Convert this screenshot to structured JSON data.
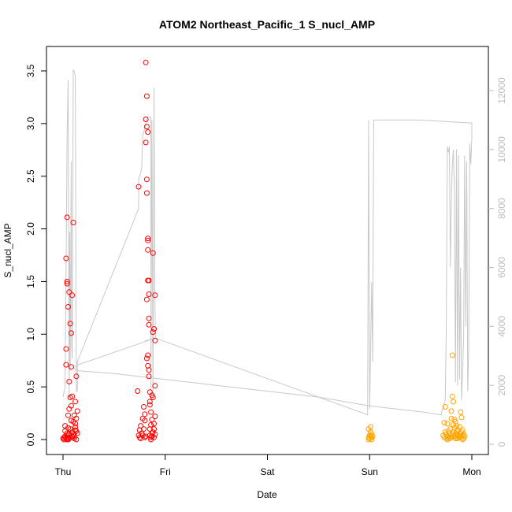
{
  "chart_data": {
    "type": "scatter",
    "title": "ATOM2 Northeast_Pacific_1 S_nucl_AMP",
    "xlabel": "Date",
    "ylabel": "S_nucl_AMP",
    "x_ticks": [
      "Thu",
      "Fri",
      "Sat",
      "Sun",
      "Mon"
    ],
    "y_ticks": [
      "0.0",
      "0.5",
      "1.0",
      "1.5",
      "2.0",
      "2.5",
      "3.0",
      "3.5"
    ],
    "ylim": [
      0,
      3.6
    ],
    "right_axis": {
      "ticks": [
        "0",
        "2000",
        "4000",
        "6000",
        "8000",
        "10000",
        "12000"
      ],
      "ylim": [
        0,
        12800
      ],
      "color": "#bdbdbd"
    },
    "xlim_days": [
      0,
      4
    ],
    "colors": {
      "red": "#ff0000",
      "orange": "#ffa500",
      "line": "#c8c8c8"
    },
    "series_red": [
      [
        0.0,
        0.01
      ],
      [
        0.01,
        0.02
      ],
      [
        0.01,
        0.0
      ],
      [
        0.02,
        0.03
      ],
      [
        0.02,
        0.08
      ],
      [
        0.03,
        0.01
      ],
      [
        0.03,
        0.86
      ],
      [
        0.03,
        0.71
      ],
      [
        0.03,
        1.72
      ],
      [
        0.04,
        0.0
      ],
      [
        0.04,
        2.11
      ],
      [
        0.04,
        0.04
      ],
      [
        0.04,
        1.48
      ],
      [
        0.04,
        1.5
      ],
      [
        0.05,
        0.02
      ],
      [
        0.05,
        0.23
      ],
      [
        0.05,
        1.26
      ],
      [
        0.05,
        0.0
      ],
      [
        0.06,
        0.55
      ],
      [
        0.06,
        1.4
      ],
      [
        0.06,
        0.05
      ],
      [
        0.06,
        0.01
      ],
      [
        0.07,
        1.1
      ],
      [
        0.07,
        0.4
      ],
      [
        0.07,
        0.1
      ],
      [
        0.07,
        0.02
      ],
      [
        0.08,
        1.01
      ],
      [
        0.08,
        0.32
      ],
      [
        0.08,
        0.69
      ],
      [
        0.09,
        0.07
      ],
      [
        0.09,
        0.41
      ],
      [
        0.09,
        1.37
      ],
      [
        0.1,
        2.06
      ],
      [
        0.1,
        0.17
      ],
      [
        0.1,
        0.02
      ],
      [
        0.11,
        0.23
      ],
      [
        0.11,
        0.04
      ],
      [
        0.11,
        0.01
      ],
      [
        0.12,
        0.36
      ],
      [
        0.12,
        0.12
      ],
      [
        0.12,
        0.09
      ],
      [
        0.13,
        0.6
      ],
      [
        0.13,
        0.2
      ],
      [
        0.13,
        0.0
      ],
      [
        0.14,
        0.27
      ],
      [
        0.14,
        0.06
      ],
      [
        0.02,
        0.13
      ],
      [
        0.05,
        0.11
      ],
      [
        0.08,
        0.18
      ],
      [
        0.1,
        0.05
      ],
      [
        0.06,
        0.29
      ],
      [
        0.12,
        0.15
      ],
      [
        0.04,
        0.06
      ],
      [
        0.09,
        0.03
      ],
      [
        0.13,
        0.08
      ],
      [
        0.73,
        0.46
      ],
      [
        0.74,
        2.4
      ],
      [
        0.74,
        0.04
      ],
      [
        0.75,
        0.02
      ],
      [
        0.75,
        0.09
      ],
      [
        0.76,
        0.13
      ],
      [
        0.76,
        0.01
      ],
      [
        0.77,
        0.06
      ],
      [
        0.78,
        0.2
      ],
      [
        0.78,
        0.04
      ],
      [
        0.79,
        0.31
      ],
      [
        0.79,
        0.1
      ],
      [
        0.8,
        0.02
      ],
      [
        0.8,
        0.18
      ],
      [
        0.8,
        0.24
      ],
      [
        0.81,
        2.82
      ],
      [
        0.81,
        0.03
      ],
      [
        0.81,
        3.58
      ],
      [
        0.81,
        3.04
      ],
      [
        0.82,
        2.34
      ],
      [
        0.82,
        2.47
      ],
      [
        0.82,
        2.97
      ],
      [
        0.82,
        3.26
      ],
      [
        0.82,
        1.33
      ],
      [
        0.83,
        0.8
      ],
      [
        0.83,
        0.7
      ],
      [
        0.83,
        1.8
      ],
      [
        0.83,
        1.51
      ],
      [
        0.83,
        1.89
      ],
      [
        0.83,
        1.91
      ],
      [
        0.83,
        2.92
      ],
      [
        0.84,
        1.51
      ],
      [
        0.84,
        0.66
      ],
      [
        0.84,
        0.6
      ],
      [
        0.84,
        1.09
      ],
      [
        0.84,
        1.38
      ],
      [
        0.84,
        1.15
      ],
      [
        0.85,
        0.33
      ],
      [
        0.85,
        0.45
      ],
      [
        0.85,
        0.36
      ],
      [
        0.85,
        0.1
      ],
      [
        0.85,
        0.04
      ],
      [
        0.86,
        0.26
      ],
      [
        0.86,
        0.02
      ],
      [
        0.86,
        0.14
      ],
      [
        0.87,
        0.42
      ],
      [
        0.87,
        0.19
      ],
      [
        0.87,
        0.06
      ],
      [
        0.88,
        1.02
      ],
      [
        0.88,
        1.77
      ],
      [
        0.88,
        0.4
      ],
      [
        0.89,
        0.1
      ],
      [
        0.89,
        1.05
      ],
      [
        0.89,
        0.02
      ],
      [
        0.9,
        0.51
      ],
      [
        0.9,
        0.94
      ],
      [
        0.9,
        1.37
      ],
      [
        0.9,
        0.22
      ],
      [
        0.9,
        0.05
      ],
      [
        0.86,
        0.0
      ],
      [
        0.87,
        0.03
      ],
      [
        0.88,
        0.07
      ],
      [
        0.89,
        0.15
      ],
      [
        0.82,
        0.77
      ]
    ],
    "series_orange": [
      [
        2.99,
        0.02
      ],
      [
        2.99,
        0.1
      ],
      [
        2.99,
        0.0
      ],
      [
        3.0,
        0.04
      ],
      [
        3.0,
        0.01
      ],
      [
        3.01,
        0.07
      ],
      [
        3.01,
        0.03
      ],
      [
        3.01,
        0.12
      ],
      [
        3.02,
        0.02
      ],
      [
        3.02,
        0.05
      ],
      [
        3.02,
        0.0
      ],
      [
        3.03,
        0.03
      ],
      [
        3.72,
        0.04
      ],
      [
        3.73,
        0.16
      ],
      [
        3.73,
        0.02
      ],
      [
        3.74,
        0.31
      ],
      [
        3.74,
        0.07
      ],
      [
        3.75,
        0.01
      ],
      [
        3.75,
        0.05
      ],
      [
        3.76,
        0.03
      ],
      [
        3.76,
        0.15
      ],
      [
        3.77,
        0.02
      ],
      [
        3.78,
        0.06
      ],
      [
        3.78,
        0.01
      ],
      [
        3.79,
        0.04
      ],
      [
        3.79,
        0.1
      ],
      [
        3.8,
        0.02
      ],
      [
        3.8,
        0.2
      ],
      [
        3.8,
        0.27
      ],
      [
        3.81,
        0.8
      ],
      [
        3.81,
        0.41
      ],
      [
        3.82,
        0.36
      ],
      [
        3.82,
        0.14
      ],
      [
        3.82,
        0.07
      ],
      [
        3.83,
        0.19
      ],
      [
        3.83,
        0.03
      ],
      [
        3.83,
        0.11
      ],
      [
        3.84,
        0.05
      ],
      [
        3.84,
        0.17
      ],
      [
        3.85,
        0.02
      ],
      [
        3.85,
        0.08
      ],
      [
        3.86,
        0.01
      ],
      [
        3.86,
        0.04
      ],
      [
        3.87,
        0.09
      ],
      [
        3.87,
        0.03
      ],
      [
        3.88,
        0.12
      ],
      [
        3.88,
        0.02
      ],
      [
        3.89,
        0.05
      ],
      [
        3.89,
        0.26
      ],
      [
        3.9,
        0.07
      ],
      [
        3.9,
        0.21
      ],
      [
        3.9,
        0.02
      ],
      [
        3.91,
        0.04
      ],
      [
        3.91,
        0.09
      ],
      [
        3.92,
        0.01
      ],
      [
        3.92,
        0.05
      ],
      [
        3.93,
        0.03
      ],
      [
        3.77,
        0.08
      ],
      [
        3.81,
        0.05
      ],
      [
        3.85,
        0.13
      ],
      [
        3.79,
        0.02
      ],
      [
        3.84,
        0.01
      ],
      [
        3.88,
        0.06
      ],
      [
        3.76,
        0.0
      ],
      [
        3.91,
        0.0
      ]
    ],
    "right_series": [
      [
        0.0,
        1600
      ],
      [
        0.02,
        1950
      ],
      [
        0.03,
        6000
      ],
      [
        0.04,
        10500
      ],
      [
        0.05,
        12350
      ],
      [
        0.06,
        1600
      ],
      [
        0.065,
        7200
      ],
      [
        0.07,
        2500
      ],
      [
        0.08,
        9600
      ],
      [
        0.085,
        3300
      ],
      [
        0.09,
        2900
      ],
      [
        0.1,
        12700
      ],
      [
        0.11,
        12650
      ],
      [
        0.12,
        12500
      ],
      [
        0.13,
        1800
      ],
      [
        0.14,
        1800
      ],
      [
        0.14,
        2800
      ],
      [
        0.74,
        8000
      ],
      [
        0.74,
        9000
      ],
      [
        0.76,
        9200
      ],
      [
        0.77,
        9400
      ],
      [
        0.78,
        10500
      ],
      [
        0.79,
        10600
      ],
      [
        0.8,
        10700
      ],
      [
        0.82,
        11100
      ],
      [
        0.84,
        11100
      ],
      [
        0.86,
        11100
      ],
      [
        0.86,
        1800
      ],
      [
        0.87,
        11000
      ],
      [
        0.88,
        1500
      ],
      [
        0.89,
        12100
      ],
      [
        0.9,
        4500
      ],
      [
        0.905,
        3600
      ],
      [
        2.98,
        1000
      ],
      [
        2.99,
        11000
      ],
      [
        3.0,
        1200
      ],
      [
        3.02,
        5500
      ],
      [
        3.03,
        2800
      ],
      [
        3.04,
        11000
      ],
      [
        3.5,
        11000
      ],
      [
        4.0,
        10900
      ],
      [
        4.0,
        10400
      ],
      [
        3.99,
        9500
      ],
      [
        3.98,
        10200
      ],
      [
        3.97,
        3300
      ],
      [
        3.96,
        1800
      ],
      [
        3.95,
        9600
      ],
      [
        3.94,
        4000
      ],
      [
        3.93,
        9800
      ],
      [
        3.92,
        3600
      ],
      [
        3.91,
        2500
      ],
      [
        3.9,
        1500
      ],
      [
        3.89,
        6000
      ],
      [
        3.88,
        2200
      ],
      [
        3.87,
        9800
      ],
      [
        3.86,
        2000
      ],
      [
        3.85,
        10000
      ],
      [
        3.84,
        2100
      ],
      [
        3.83,
        8500
      ],
      [
        3.82,
        10000
      ],
      [
        3.81,
        9500
      ],
      [
        3.8,
        8300
      ],
      [
        3.79,
        6000
      ],
      [
        3.78,
        10100
      ],
      [
        3.77,
        9900
      ],
      [
        3.76,
        10100
      ],
      [
        3.75,
        4000
      ],
      [
        3.74,
        1500
      ],
      [
        3.73,
        1400
      ],
      [
        3.72,
        1200
      ],
      [
        3.71,
        1200
      ],
      [
        3.7,
        1000
      ],
      [
        3.5,
        1100
      ],
      [
        3.0,
        1300
      ],
      [
        2.5,
        1600
      ],
      [
        2.0,
        1800
      ],
      [
        1.5,
        2000
      ],
      [
        1.0,
        2200
      ],
      [
        0.5,
        2400
      ],
      [
        0.13,
        2500
      ],
      [
        0.1,
        2600
      ],
      [
        0.15,
        2700
      ],
      [
        0.9,
        3600
      ],
      [
        0.8,
        3500
      ]
    ]
  }
}
